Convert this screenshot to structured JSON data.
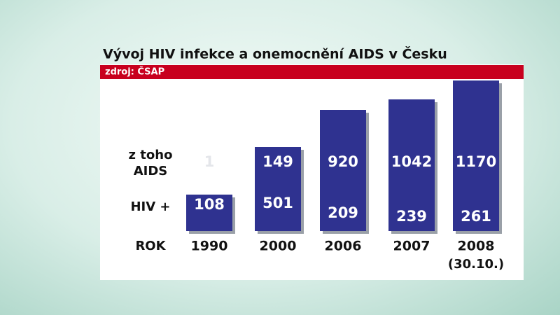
{
  "header": {
    "title": "Vývoj HIV infekce a onemocnění AIDS v Česku",
    "source": "zdroj: ČSAP"
  },
  "row_labels": {
    "aids": [
      "z toho",
      "AIDS"
    ],
    "hiv": "HIV +",
    "year": "ROK"
  },
  "columns": [
    {
      "year": "1990",
      "aids": "1",
      "hiv": "108"
    },
    {
      "year": "2000",
      "aids": "149",
      "hiv": "501"
    },
    {
      "year": "2006",
      "aids": "920",
      "hiv": "209"
    },
    {
      "year": "2007",
      "aids": "1042",
      "hiv": "239"
    },
    {
      "year": "2008",
      "note": "(30.10.)",
      "aids": "1170",
      "hiv": "261"
    }
  ]
}
